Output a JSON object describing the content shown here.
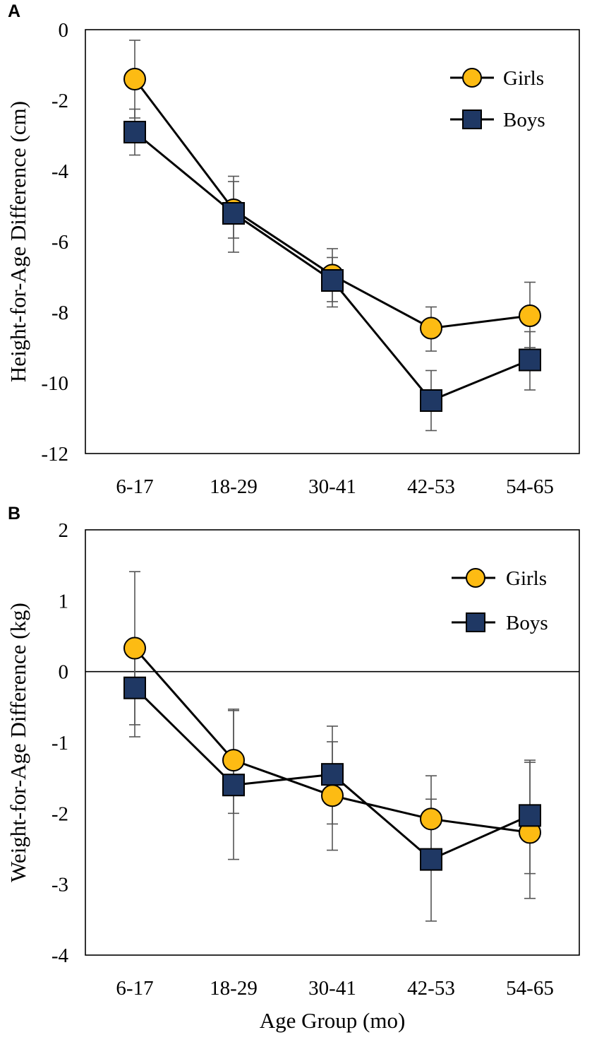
{
  "chart_data": [
    {
      "type": "line",
      "panel_label": "A",
      "title": "",
      "xlabel": "",
      "ylabel": "Height-for-Age Difference (cm)",
      "categories": [
        "6-17",
        "18-29",
        "30-41",
        "42-53",
        "54-65"
      ],
      "ylim": [
        -12,
        0
      ],
      "yticks": [
        0,
        -2,
        -4,
        -6,
        -8,
        -10,
        -12
      ],
      "ytick_labels": [
        "0",
        "-2",
        "-4",
        "-6",
        "-8",
        "-10",
        "-12"
      ],
      "zero_line": false,
      "legend_position": "top-right",
      "series": [
        {
          "name": "Girls",
          "marker": "circle",
          "color": "#fdbb13",
          "values": [
            -1.4,
            -5.1,
            -6.95,
            -8.45,
            -8.1
          ],
          "error_low": [
            -2.5,
            -5.9,
            -7.7,
            -9.1,
            -9.0
          ],
          "error_high": [
            -0.3,
            -4.3,
            -6.2,
            -7.85,
            -7.15
          ]
        },
        {
          "name": "Boys",
          "marker": "square",
          "color": "#1f3864",
          "values": [
            -2.9,
            -5.2,
            -7.1,
            -10.5,
            -9.35
          ],
          "error_low": [
            -3.55,
            -6.3,
            -7.85,
            -11.35,
            -10.2
          ],
          "error_high": [
            -2.25,
            -4.15,
            -6.45,
            -9.65,
            -8.55
          ]
        }
      ]
    },
    {
      "type": "line",
      "panel_label": "B",
      "title": "",
      "xlabel": "Age Group (mo)",
      "ylabel": "Weight-for-Age Difference (kg)",
      "categories": [
        "6-17",
        "18-29",
        "30-41",
        "42-53",
        "54-65"
      ],
      "ylim": [
        -4,
        2
      ],
      "yticks": [
        2,
        1,
        0,
        -1,
        -2,
        -3,
        -4
      ],
      "ytick_labels": [
        "2",
        "1",
        "0",
        "-1",
        "-2",
        "-3",
        "-4"
      ],
      "zero_line": true,
      "legend_position": "top-right",
      "series": [
        {
          "name": "Girls",
          "marker": "circle",
          "color": "#fdbb13",
          "values": [
            0.33,
            -1.25,
            -1.75,
            -2.08,
            -2.27
          ],
          "error_low": [
            -0.75,
            -2.0,
            -2.52,
            -2.72,
            -3.2
          ],
          "error_high": [
            1.41,
            -0.53,
            -0.99,
            -1.47,
            -1.28
          ]
        },
        {
          "name": "Boys",
          "marker": "square",
          "color": "#1f3864",
          "values": [
            -0.23,
            -1.6,
            -1.45,
            -2.65,
            -2.03
          ],
          "error_low": [
            -0.92,
            -2.65,
            -2.15,
            -3.52,
            -2.85
          ],
          "error_high": [
            0.46,
            -0.55,
            -0.77,
            -1.8,
            -1.25
          ]
        }
      ]
    }
  ]
}
